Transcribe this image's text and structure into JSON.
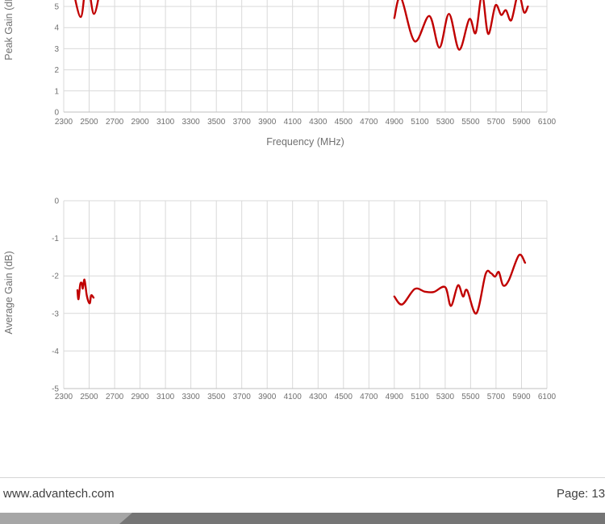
{
  "footer": {
    "website": "www.advantech.com",
    "page_label": "Page: 13"
  },
  "colors": {
    "line_red": "#C00000",
    "gridline": "#D9D9D9",
    "axis_line": "#BFBFBF",
    "tick_label": "#707070",
    "axis_title": "#707070",
    "footer_text": "#404040",
    "footer_rule": "#D6D6D6",
    "footer_bar_light": "#A6A6A6",
    "footer_bar_dark": "#757575",
    "page_background": "#FFFFFF"
  },
  "chart_data": [
    {
      "type": "line",
      "title": "",
      "xlabel": "Frequency (MHz)",
      "ylabel": "Peak Gain (dB)",
      "xlim": [
        2300,
        6100
      ],
      "ylim_visible": [
        0,
        5.3
      ],
      "cropped_top": true,
      "grid": true,
      "legend": "none",
      "x_ticks": [
        2300,
        2500,
        2700,
        2900,
        3100,
        3300,
        3500,
        3700,
        3900,
        4100,
        4300,
        4500,
        4700,
        4900,
        5100,
        5300,
        5500,
        5700,
        5900,
        6100
      ],
      "y_ticks": [
        0,
        1,
        2,
        3,
        4,
        5
      ],
      "line_color": "#C00000",
      "series": [
        {
          "name": "segment-1",
          "points": [
            [
              2360,
              6.2
            ],
            [
              2434,
              4.5
            ],
            [
              2482,
              6.3
            ],
            [
              2538,
              4.65
            ],
            [
              2600,
              6.3
            ]
          ]
        },
        {
          "name": "segment-2",
          "points": [
            [
              4900,
              4.45
            ],
            [
              4952,
              5.42
            ],
            [
              5060,
              3.35
            ],
            [
              5175,
              4.55
            ],
            [
              5255,
              3.05
            ],
            [
              5330,
              4.65
            ],
            [
              5410,
              2.95
            ],
            [
              5490,
              4.4
            ],
            [
              5540,
              3.75
            ],
            [
              5590,
              5.55
            ],
            [
              5638,
              3.7
            ],
            [
              5695,
              5.05
            ],
            [
              5740,
              4.6
            ],
            [
              5778,
              4.82
            ],
            [
              5820,
              4.35
            ],
            [
              5875,
              5.6
            ],
            [
              5920,
              4.72
            ],
            [
              5950,
              5.0
            ]
          ]
        }
      ]
    },
    {
      "type": "line",
      "title": "",
      "xlabel": "",
      "ylabel": "Average Gain (dB)",
      "xlim": [
        2300,
        6100
      ],
      "ylim": [
        -5,
        0
      ],
      "grid": true,
      "legend": "none",
      "x_ticks": [
        2300,
        2500,
        2700,
        2900,
        3100,
        3300,
        3500,
        3700,
        3900,
        4100,
        4300,
        4500,
        4700,
        4900,
        5100,
        5300,
        5500,
        5700,
        5900,
        6100
      ],
      "y_ticks": [
        0,
        -1,
        -2,
        -3,
        -4,
        -5
      ],
      "line_color": "#C00000",
      "series": [
        {
          "name": "segment-1",
          "points": [
            [
              2408,
              -2.38
            ],
            [
              2416,
              -2.62
            ],
            [
              2430,
              -2.22
            ],
            [
              2443,
              -2.2
            ],
            [
              2450,
              -2.34
            ],
            [
              2463,
              -2.1
            ],
            [
              2480,
              -2.5
            ],
            [
              2494,
              -2.68
            ],
            [
              2506,
              -2.72
            ],
            [
              2516,
              -2.52
            ],
            [
              2535,
              -2.58
            ]
          ]
        },
        {
          "name": "segment-2",
          "points": [
            [
              4900,
              -2.55
            ],
            [
              4962,
              -2.76
            ],
            [
              5060,
              -2.35
            ],
            [
              5140,
              -2.42
            ],
            [
              5210,
              -2.43
            ],
            [
              5300,
              -2.3
            ],
            [
              5345,
              -2.8
            ],
            [
              5400,
              -2.25
            ],
            [
              5440,
              -2.55
            ],
            [
              5472,
              -2.38
            ],
            [
              5545,
              -3.0
            ],
            [
              5618,
              -1.95
            ],
            [
              5660,
              -1.93
            ],
            [
              5692,
              -2.02
            ],
            [
              5722,
              -1.9
            ],
            [
              5755,
              -2.25
            ],
            [
              5800,
              -2.12
            ],
            [
              5880,
              -1.45
            ],
            [
              5928,
              -1.65
            ]
          ]
        }
      ]
    }
  ]
}
